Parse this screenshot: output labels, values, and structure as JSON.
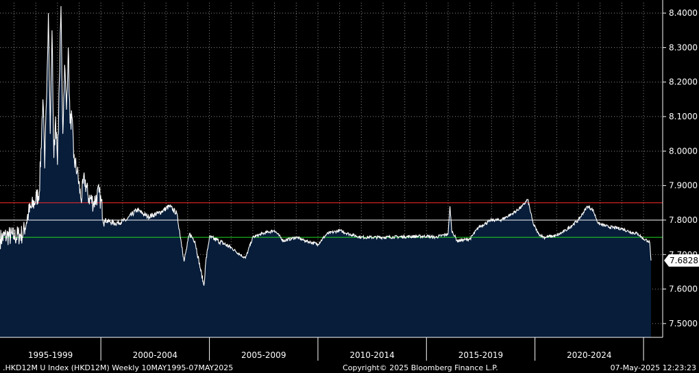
{
  "chart_data": {
    "type": "area",
    "title": "",
    "xlabel": "",
    "ylabel": "",
    "x_range": [
      "1995-05-10",
      "2025-05-07"
    ],
    "ylim": [
      7.46,
      8.43
    ],
    "grid": true,
    "y_ticks": [
      "8.4000",
      "8.3000",
      "8.2000",
      "8.1000",
      "8.0000",
      "7.9000",
      "7.8000",
      "7.7000",
      "7.6000",
      "7.5000"
    ],
    "x_categories": [
      "1995-1999",
      "2000-2004",
      "2005-2009",
      "2010-2014",
      "2015-2019",
      "2020-2024"
    ],
    "last_value": "7.6828",
    "reference_lines": [
      {
        "value": 7.85,
        "color": "#ff2b2b"
      },
      {
        "value": 7.8,
        "color": "#ffffff"
      },
      {
        "value": 7.75,
        "color": "#22dd22"
      }
    ],
    "series": [
      {
        "line_color": "#ffffff",
        "fill_color": "#071d3a",
        "points": [
          [
            "1995-05-10",
            7.745
          ],
          [
            "1995-09-01",
            7.755
          ],
          [
            "1996-01-01",
            7.752
          ],
          [
            "1996-06-01",
            7.76
          ],
          [
            "1996-09-01",
            7.82
          ],
          [
            "1997-01-01",
            7.86
          ],
          [
            "1997-03-01",
            7.88
          ],
          [
            "1997-05-01",
            8.15
          ],
          [
            "1997-06-01",
            7.95
          ],
          [
            "1997-08-01",
            8.4
          ],
          [
            "1997-09-01",
            8.05
          ],
          [
            "1997-10-01",
            8.35
          ],
          [
            "1997-11-01",
            7.98
          ],
          [
            "1997-12-01",
            8.1
          ],
          [
            "1998-01-01",
            7.96
          ],
          [
            "1998-02-01",
            8.2
          ],
          [
            "1998-03-01",
            8.42
          ],
          [
            "1998-04-01",
            8.05
          ],
          [
            "1998-05-01",
            8.25
          ],
          [
            "1998-06-01",
            8.12
          ],
          [
            "1998-07-01",
            8.3
          ],
          [
            "1998-08-01",
            8.08
          ],
          [
            "1998-09-01",
            8.1
          ],
          [
            "1998-10-01",
            7.98
          ],
          [
            "1998-12-01",
            7.94
          ],
          [
            "1999-02-01",
            7.86
          ],
          [
            "1999-04-01",
            7.92
          ],
          [
            "1999-06-01",
            7.87
          ],
          [
            "1999-09-01",
            7.85
          ],
          [
            "1999-12-01",
            7.88
          ],
          [
            "2000-03-01",
            7.8
          ],
          [
            "2000-09-01",
            7.79
          ],
          [
            "2001-03-01",
            7.8
          ],
          [
            "2001-09-01",
            7.83
          ],
          [
            "2002-03-01",
            7.81
          ],
          [
            "2002-09-01",
            7.82
          ],
          [
            "2003-03-01",
            7.84
          ],
          [
            "2003-07-01",
            7.82
          ],
          [
            "2003-10-01",
            7.72
          ],
          [
            "2003-11-01",
            7.68
          ],
          [
            "2004-02-01",
            7.76
          ],
          [
            "2004-05-01",
            7.74
          ],
          [
            "2004-08-01",
            7.66
          ],
          [
            "2004-10-01",
            7.61
          ],
          [
            "2004-11-01",
            7.68
          ],
          [
            "2005-01-01",
            7.75
          ],
          [
            "2005-06-01",
            7.74
          ],
          [
            "2006-01-01",
            7.72
          ],
          [
            "2006-06-01",
            7.7
          ],
          [
            "2006-09-01",
            7.69
          ],
          [
            "2007-01-01",
            7.75
          ],
          [
            "2007-06-01",
            7.76
          ],
          [
            "2008-01-01",
            7.77
          ],
          [
            "2008-06-01",
            7.74
          ],
          [
            "2009-01-01",
            7.75
          ],
          [
            "2009-06-01",
            7.74
          ],
          [
            "2010-01-01",
            7.73
          ],
          [
            "2010-06-01",
            7.76
          ],
          [
            "2011-01-01",
            7.77
          ],
          [
            "2011-06-01",
            7.76
          ],
          [
            "2012-01-01",
            7.75
          ],
          [
            "2013-01-01",
            7.75
          ],
          [
            "2014-01-01",
            7.752
          ],
          [
            "2015-01-01",
            7.753
          ],
          [
            "2015-06-01",
            7.75
          ],
          [
            "2016-01-01",
            7.76
          ],
          [
            "2016-02-01",
            7.84
          ],
          [
            "2016-03-01",
            7.77
          ],
          [
            "2016-06-01",
            7.74
          ],
          [
            "2017-01-01",
            7.745
          ],
          [
            "2017-06-01",
            7.78
          ],
          [
            "2018-01-01",
            7.8
          ],
          [
            "2018-06-01",
            7.8
          ],
          [
            "2019-01-01",
            7.82
          ],
          [
            "2019-06-01",
            7.84
          ],
          [
            "2019-09-01",
            7.86
          ],
          [
            "2019-12-01",
            7.79
          ],
          [
            "2020-03-01",
            7.76
          ],
          [
            "2020-06-01",
            7.75
          ],
          [
            "2021-01-01",
            7.755
          ],
          [
            "2021-06-01",
            7.77
          ],
          [
            "2022-01-01",
            7.8
          ],
          [
            "2022-06-01",
            7.84
          ],
          [
            "2022-09-01",
            7.83
          ],
          [
            "2022-12-01",
            7.79
          ],
          [
            "2023-06-01",
            7.78
          ],
          [
            "2024-01-01",
            7.775
          ],
          [
            "2024-06-01",
            7.765
          ],
          [
            "2024-10-01",
            7.76
          ],
          [
            "2025-01-01",
            7.745
          ],
          [
            "2025-03-15",
            7.74
          ],
          [
            "2025-04-15",
            7.735
          ],
          [
            "2025-05-07",
            7.6828
          ]
        ]
      }
    ]
  },
  "footer": {
    "left": ".HKD12M U Index (HKD12M)  Weekly 10MAY1995-07MAY2025",
    "center": "Copyright© 2025 Bloomberg Finance L.P.",
    "right": "07-May-2025 12:23:23"
  }
}
